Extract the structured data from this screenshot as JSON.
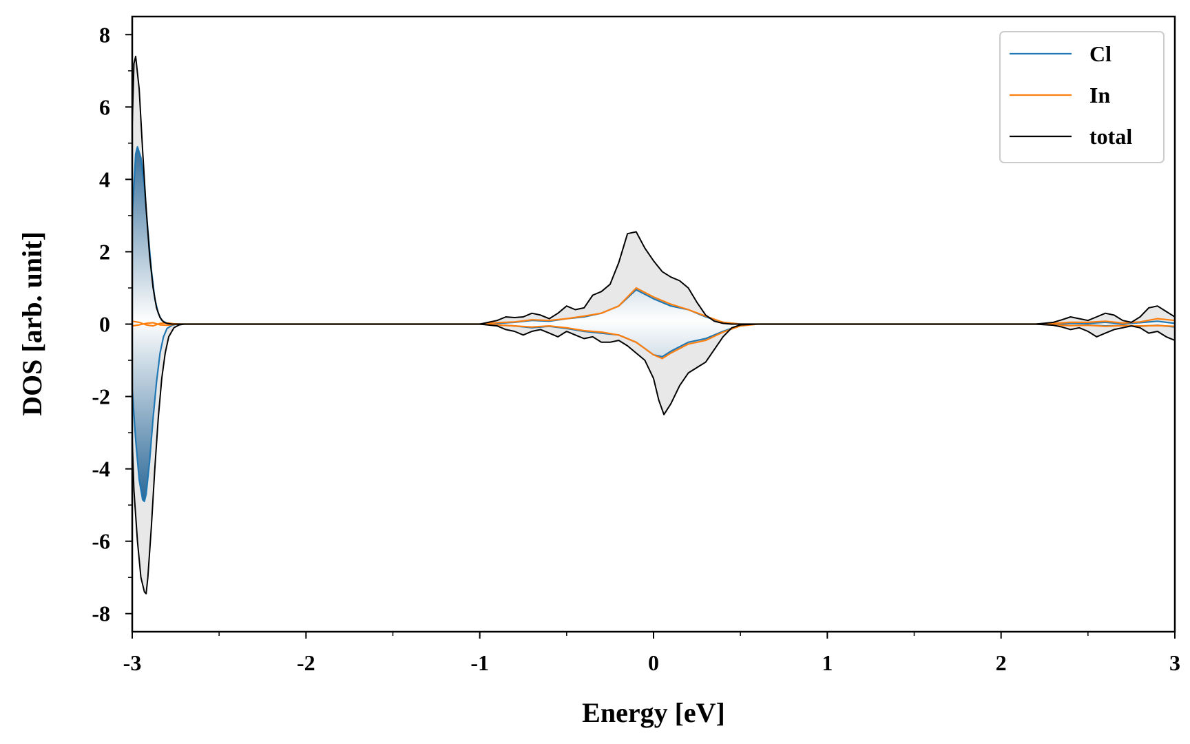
{
  "chart_data": {
    "type": "area",
    "xlabel": "Energy [eV]",
    "ylabel": "DOS [arb. unit]",
    "xlim": [
      -3,
      3
    ],
    "ylim": [
      -8.5,
      8.5
    ],
    "xticks": [
      -3,
      -2,
      -1,
      0,
      1,
      2,
      3
    ],
    "xtick_labels": [
      "-3",
      "-2",
      "-1",
      "0",
      "1",
      "2",
      "3"
    ],
    "yticks": [
      -8,
      -6,
      -4,
      -2,
      0,
      2,
      4,
      6,
      8
    ],
    "ytick_labels": [
      "-8",
      "-6",
      "-4",
      "-2",
      "0",
      "2",
      "4",
      "6",
      "8"
    ],
    "grid": false,
    "legend_position": "top-right",
    "legend": [
      "Cl",
      "In",
      "total"
    ],
    "series": [
      {
        "name": "Cl",
        "color": "#1f77b4",
        "up": {
          "x": [
            -3.0,
            -2.98,
            -2.97,
            -2.95,
            -2.93,
            -2.91,
            -2.89,
            -2.87,
            -2.85,
            -2.83,
            -2.8,
            -2.77,
            -2.74,
            -2.7,
            -1.0,
            -0.9,
            -0.8,
            -0.7,
            -0.6,
            -0.5,
            -0.4,
            -0.3,
            -0.2,
            -0.1,
            0.0,
            0.1,
            0.2,
            0.3,
            0.4,
            0.5,
            0.6,
            2.2,
            2.3,
            2.4,
            2.5,
            2.6,
            2.7,
            2.8,
            2.9,
            3.0
          ],
          "y": [
            3.0,
            4.7,
            4.9,
            4.6,
            3.8,
            2.6,
            1.5,
            0.7,
            0.3,
            0.1,
            0.02,
            0.0,
            0.0,
            0.0,
            0.0,
            0.02,
            0.05,
            0.1,
            0.08,
            0.15,
            0.2,
            0.3,
            0.5,
            0.95,
            0.7,
            0.5,
            0.4,
            0.2,
            0.05,
            0.0,
            0.0,
            0.0,
            0.0,
            0.03,
            0.02,
            0.05,
            0.01,
            0.04,
            0.08,
            0.02
          ]
        },
        "down": {
          "x": [
            -3.0,
            -2.98,
            -2.96,
            -2.94,
            -2.93,
            -2.92,
            -2.9,
            -2.88,
            -2.86,
            -2.84,
            -2.82,
            -2.8,
            -2.77,
            -2.74,
            -2.7,
            -1.0,
            -0.9,
            -0.8,
            -0.7,
            -0.6,
            -0.5,
            -0.4,
            -0.3,
            -0.2,
            -0.1,
            0.0,
            0.05,
            0.1,
            0.2,
            0.3,
            0.4,
            0.5,
            0.6,
            2.2,
            2.3,
            2.4,
            2.5,
            2.6,
            2.7,
            2.8,
            2.9,
            3.0
          ],
          "y": [
            -1.8,
            -3.2,
            -4.3,
            -4.85,
            -4.9,
            -4.7,
            -3.8,
            -2.6,
            -1.6,
            -0.8,
            -0.35,
            -0.12,
            -0.03,
            0.0,
            0.0,
            0.0,
            -0.02,
            -0.05,
            -0.1,
            -0.06,
            -0.12,
            -0.2,
            -0.25,
            -0.3,
            -0.5,
            -0.85,
            -0.9,
            -0.75,
            -0.5,
            -0.4,
            -0.2,
            -0.03,
            0.0,
            0.0,
            -0.01,
            -0.03,
            -0.02,
            -0.05,
            -0.03,
            -0.06,
            -0.03,
            -0.08
          ]
        }
      },
      {
        "name": "In",
        "color": "#ff7f0e",
        "up": {
          "x": [
            -3.0,
            -2.96,
            -2.92,
            -2.88,
            -2.84,
            -2.8,
            -2.76,
            -2.72,
            -1.0,
            -0.9,
            -0.8,
            -0.7,
            -0.6,
            -0.5,
            -0.4,
            -0.3,
            -0.2,
            -0.1,
            0.0,
            0.1,
            0.2,
            0.3,
            0.4,
            0.5,
            0.6,
            2.2,
            2.3,
            2.4,
            2.5,
            2.6,
            2.7,
            2.8,
            2.9,
            3.0
          ],
          "y": [
            0.08,
            0.05,
            -0.02,
            -0.05,
            0.02,
            0.03,
            0.01,
            0.0,
            0.0,
            0.04,
            0.06,
            0.12,
            0.1,
            0.15,
            0.22,
            0.3,
            0.5,
            1.0,
            0.75,
            0.55,
            0.4,
            0.22,
            0.05,
            0.0,
            0.0,
            0.0,
            0.02,
            0.05,
            0.05,
            0.08,
            0.03,
            0.06,
            0.15,
            0.1
          ]
        },
        "down": {
          "x": [
            -3.0,
            -2.96,
            -2.92,
            -2.88,
            -2.84,
            -2.8,
            -2.76,
            -2.72,
            -1.0,
            -0.9,
            -0.8,
            -0.7,
            -0.6,
            -0.5,
            -0.4,
            -0.3,
            -0.2,
            -0.1,
            0.0,
            0.05,
            0.1,
            0.2,
            0.3,
            0.4,
            0.5,
            0.6,
            2.2,
            2.3,
            2.4,
            2.5,
            2.6,
            2.7,
            2.8,
            2.9,
            3.0
          ],
          "y": [
            -0.05,
            -0.02,
            0.02,
            0.04,
            -0.02,
            -0.03,
            -0.01,
            0.0,
            0.0,
            -0.02,
            -0.05,
            -0.08,
            -0.05,
            -0.1,
            -0.18,
            -0.22,
            -0.3,
            -0.5,
            -0.85,
            -0.95,
            -0.8,
            -0.55,
            -0.45,
            -0.22,
            -0.05,
            0.0,
            0.0,
            -0.02,
            -0.04,
            -0.03,
            -0.06,
            -0.04,
            -0.05,
            -0.04,
            -0.06
          ]
        }
      },
      {
        "name": "total",
        "color": "#000000",
        "up": {
          "x": [
            -3.0,
            -2.99,
            -2.98,
            -2.96,
            -2.94,
            -2.92,
            -2.9,
            -2.88,
            -2.86,
            -2.84,
            -2.82,
            -2.8,
            -2.77,
            -2.74,
            -2.7,
            -1.0,
            -0.9,
            -0.85,
            -0.8,
            -0.75,
            -0.7,
            -0.65,
            -0.6,
            -0.55,
            -0.5,
            -0.45,
            -0.4,
            -0.35,
            -0.3,
            -0.25,
            -0.2,
            -0.15,
            -0.1,
            -0.05,
            0.0,
            0.05,
            0.1,
            0.15,
            0.2,
            0.25,
            0.3,
            0.35,
            0.4,
            0.45,
            0.5,
            0.6,
            2.2,
            2.3,
            2.35,
            2.4,
            2.45,
            2.5,
            2.55,
            2.6,
            2.65,
            2.7,
            2.75,
            2.8,
            2.85,
            2.9,
            2.95,
            3.0
          ],
          "y": [
            5.5,
            7.2,
            7.4,
            6.5,
            4.8,
            3.2,
            1.9,
            1.0,
            0.45,
            0.18,
            0.06,
            0.02,
            0.0,
            0.0,
            0.0,
            0.0,
            0.1,
            0.2,
            0.18,
            0.2,
            0.3,
            0.25,
            0.15,
            0.3,
            0.5,
            0.4,
            0.45,
            0.8,
            0.9,
            1.1,
            1.7,
            2.5,
            2.55,
            2.1,
            1.75,
            1.45,
            1.3,
            1.2,
            1.0,
            0.6,
            0.25,
            0.08,
            0.02,
            0.0,
            0.0,
            0.0,
            0.0,
            0.05,
            0.12,
            0.2,
            0.15,
            0.1,
            0.2,
            0.3,
            0.25,
            0.1,
            0.05,
            0.2,
            0.45,
            0.5,
            0.35,
            0.2
          ]
        },
        "down": {
          "x": [
            -3.0,
            -2.99,
            -2.97,
            -2.95,
            -2.93,
            -2.92,
            -2.91,
            -2.89,
            -2.87,
            -2.85,
            -2.83,
            -2.81,
            -2.79,
            -2.76,
            -2.73,
            -2.7,
            -1.0,
            -0.9,
            -0.85,
            -0.8,
            -0.75,
            -0.7,
            -0.65,
            -0.6,
            -0.55,
            -0.5,
            -0.45,
            -0.4,
            -0.35,
            -0.3,
            -0.25,
            -0.2,
            -0.15,
            -0.1,
            -0.05,
            0.0,
            0.03,
            0.06,
            0.1,
            0.15,
            0.2,
            0.25,
            0.3,
            0.35,
            0.4,
            0.45,
            0.5,
            0.6,
            2.2,
            2.3,
            2.35,
            2.4,
            2.45,
            2.5,
            2.55,
            2.6,
            2.65,
            2.7,
            2.75,
            2.8,
            2.85,
            2.9,
            2.95,
            3.0
          ],
          "y": [
            -3.2,
            -4.6,
            -6.0,
            -7.0,
            -7.4,
            -7.45,
            -7.0,
            -5.6,
            -4.0,
            -2.6,
            -1.5,
            -0.8,
            -0.35,
            -0.1,
            -0.02,
            0.0,
            0.0,
            -0.05,
            -0.15,
            -0.2,
            -0.3,
            -0.2,
            -0.15,
            -0.25,
            -0.35,
            -0.2,
            -0.3,
            -0.4,
            -0.35,
            -0.5,
            -0.5,
            -0.45,
            -0.6,
            -0.8,
            -1.0,
            -1.5,
            -2.1,
            -2.5,
            -2.2,
            -1.7,
            -1.35,
            -1.2,
            -1.05,
            -0.7,
            -0.35,
            -0.1,
            -0.02,
            0.0,
            0.0,
            -0.03,
            -0.08,
            -0.15,
            -0.1,
            -0.2,
            -0.35,
            -0.25,
            -0.15,
            -0.1,
            -0.05,
            -0.1,
            -0.25,
            -0.2,
            -0.35,
            -0.45
          ]
        }
      }
    ]
  }
}
